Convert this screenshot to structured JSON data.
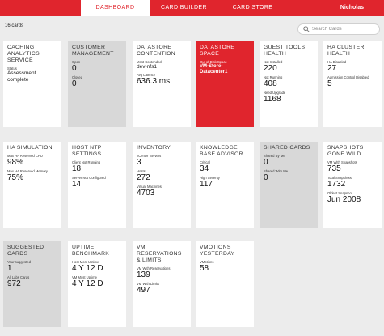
{
  "nav": {
    "tabs": [
      "DASHBOARD",
      "CARD BUILDER",
      "CARD STORE"
    ],
    "user": "Nicholas"
  },
  "summary": {
    "count": "16 cards"
  },
  "search": {
    "placeholder": "Search Cards"
  },
  "cards": [
    {
      "title": "CACHING ANALYTICS SERVICE",
      "style": "white",
      "rows": [
        {
          "label": "Status",
          "value": "Assessment complete",
          "small": true
        }
      ]
    },
    {
      "title": "CUSTOMER MANAGEMENT",
      "style": "gray",
      "rows": [
        {
          "label": "Open",
          "value": "0"
        },
        {
          "label": "Closed",
          "value": "0"
        }
      ]
    },
    {
      "title": "DATASTORE CONTENTION",
      "style": "white",
      "rows": [
        {
          "label": "Most Contended",
          "value": "dev-nfs1",
          "small": true
        },
        {
          "label": "Avg Latency",
          "value": "636.3 ms"
        }
      ]
    },
    {
      "title": "DATASTORE SPACE",
      "style": "red",
      "rows": [
        {
          "label": "Out of Disk Space",
          "value": "VM-Store-Datacenter1"
        }
      ]
    },
    {
      "title": "GUEST TOOLS HEALTH",
      "style": "white",
      "rows": [
        {
          "label": "Not Installed",
          "value": "220"
        },
        {
          "label": "Not Running",
          "value": "408"
        },
        {
          "label": "Need Upgrade",
          "value": "1168"
        }
      ]
    },
    {
      "title": "HA CLUSTER HEALTH",
      "style": "white",
      "rows": [
        {
          "label": "HA Disabled",
          "value": "27"
        },
        {
          "label": "Admission Control Disabled",
          "value": "5"
        }
      ]
    },
    {
      "title": "HA SIMULATION",
      "style": "white",
      "rows": [
        {
          "label": "Max HA Reserved CPU",
          "value": "98%"
        },
        {
          "label": "Max HA Reserved Memory",
          "value": "75%"
        }
      ]
    },
    {
      "title": "HOST NTP SETTINGS",
      "style": "white",
      "rows": [
        {
          "label": "Client Not Running",
          "value": "18"
        },
        {
          "label": "Server Not Configured",
          "value": "14"
        }
      ]
    },
    {
      "title": "INVENTORY",
      "style": "white",
      "rows": [
        {
          "label": "vCenter Servers",
          "value": "3"
        },
        {
          "label": "Hosts",
          "value": "272"
        },
        {
          "label": "Virtual Machines",
          "value": "4703"
        }
      ]
    },
    {
      "title": "KNOWLEDGE BASE ADVISOR",
      "style": "white",
      "rows": [
        {
          "label": "Critical",
          "value": "34"
        },
        {
          "label": "High Severity",
          "value": "117"
        }
      ]
    },
    {
      "title": "SHARED CARDS",
      "style": "gray",
      "rows": [
        {
          "label": "Shared By Me",
          "value": "0"
        },
        {
          "label": "Shared With Me",
          "value": "0"
        }
      ]
    },
    {
      "title": "SNAPSHOTS GONE WILD",
      "style": "white",
      "rows": [
        {
          "label": "VM With Snapshots",
          "value": "735"
        },
        {
          "label": "Total Snapshots",
          "value": "1732"
        },
        {
          "label": "Oldest Snapshot",
          "value": "Jun 2008"
        }
      ]
    },
    {
      "title": "SUGGESTED CARDS",
      "style": "gray",
      "rows": [
        {
          "label": "Your suggested",
          "value": "1"
        },
        {
          "label": "All Labs Cards",
          "value": "972"
        }
      ]
    },
    {
      "title": "UPTIME BENCHMARK",
      "style": "white",
      "rows": [
        {
          "label": "Host Most Uptime",
          "value": "4 Y 12 D"
        },
        {
          "label": "VM Most Uptime",
          "value": "4 Y 12 D"
        }
      ]
    },
    {
      "title": "VM RESERVATIONS & LIMITS",
      "style": "white",
      "rows": [
        {
          "label": "VM With Reservations",
          "value": "139"
        },
        {
          "label": "VM With Limits",
          "value": "497"
        }
      ]
    },
    {
      "title": "VMOTIONS YESTERDAY",
      "style": "white",
      "rows": [
        {
          "label": "VMotions",
          "value": "58"
        }
      ]
    }
  ]
}
